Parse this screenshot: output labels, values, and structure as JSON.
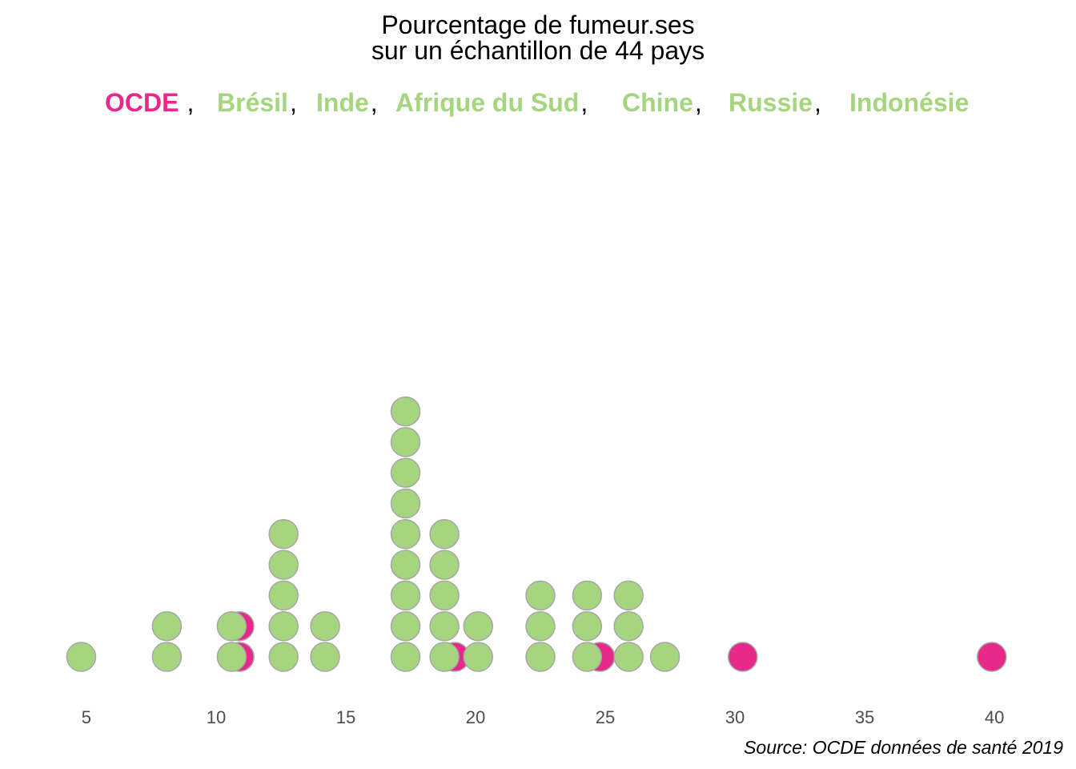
{
  "chart_data": {
    "type": "dotplot",
    "title": [
      "Pourcentage de fumeur.ses",
      "sur un échantillon de 44 pays"
    ],
    "legend": [
      {
        "label": "OCDE",
        "color": "#e7298a"
      },
      {
        "label": "Brésil",
        "color": "#a6d57f"
      },
      {
        "label": "Inde",
        "color": "#a6d57f"
      },
      {
        "label": "Afrique du Sud",
        "color": "#a6d57f"
      },
      {
        "label": "Chine",
        "color": "#a6d57f"
      },
      {
        "label": "Russie",
        "color": "#a6d57f"
      },
      {
        "label": "Indonésie",
        "color": "#a6d57f"
      }
    ],
    "legend_separator": ",",
    "caption": "Source: OCDE données de santé 2019",
    "colors": {
      "ocde": "#e7298a",
      "other": "#a6d57f",
      "outline": "#a6a6a6"
    },
    "xlim": [
      4.2,
      40.8
    ],
    "xticks": [
      5,
      10,
      15,
      20,
      25,
      30,
      35,
      40
    ],
    "stacks": [
      {
        "x": 4.8,
        "green": 1,
        "pink": 0
      },
      {
        "x": 8.1,
        "green": 2,
        "pink": 0
      },
      {
        "x": 10.9,
        "green": 0,
        "pink": 2
      },
      {
        "x": 10.6,
        "green": 2,
        "pink": 0
      },
      {
        "x": 12.6,
        "green": 5,
        "pink": 0
      },
      {
        "x": 14.2,
        "green": 2,
        "pink": 0
      },
      {
        "x": 17.3,
        "green": 9,
        "pink": 0
      },
      {
        "x": 19.2,
        "green": 0,
        "pink": 1
      },
      {
        "x": 18.8,
        "green": 5,
        "pink": 0
      },
      {
        "x": 20.1,
        "green": 2,
        "pink": 0
      },
      {
        "x": 22.5,
        "green": 3,
        "pink": 0
      },
      {
        "x": 24.8,
        "green": 0,
        "pink": 1
      },
      {
        "x": 24.3,
        "green": 3,
        "pink": 0
      },
      {
        "x": 25.9,
        "green": 3,
        "pink": 0
      },
      {
        "x": 27.3,
        "green": 1,
        "pink": 0
      },
      {
        "x": 30.3,
        "green": 0,
        "pink": 1
      },
      {
        "x": 39.9,
        "green": 0,
        "pink": 1
      }
    ]
  }
}
